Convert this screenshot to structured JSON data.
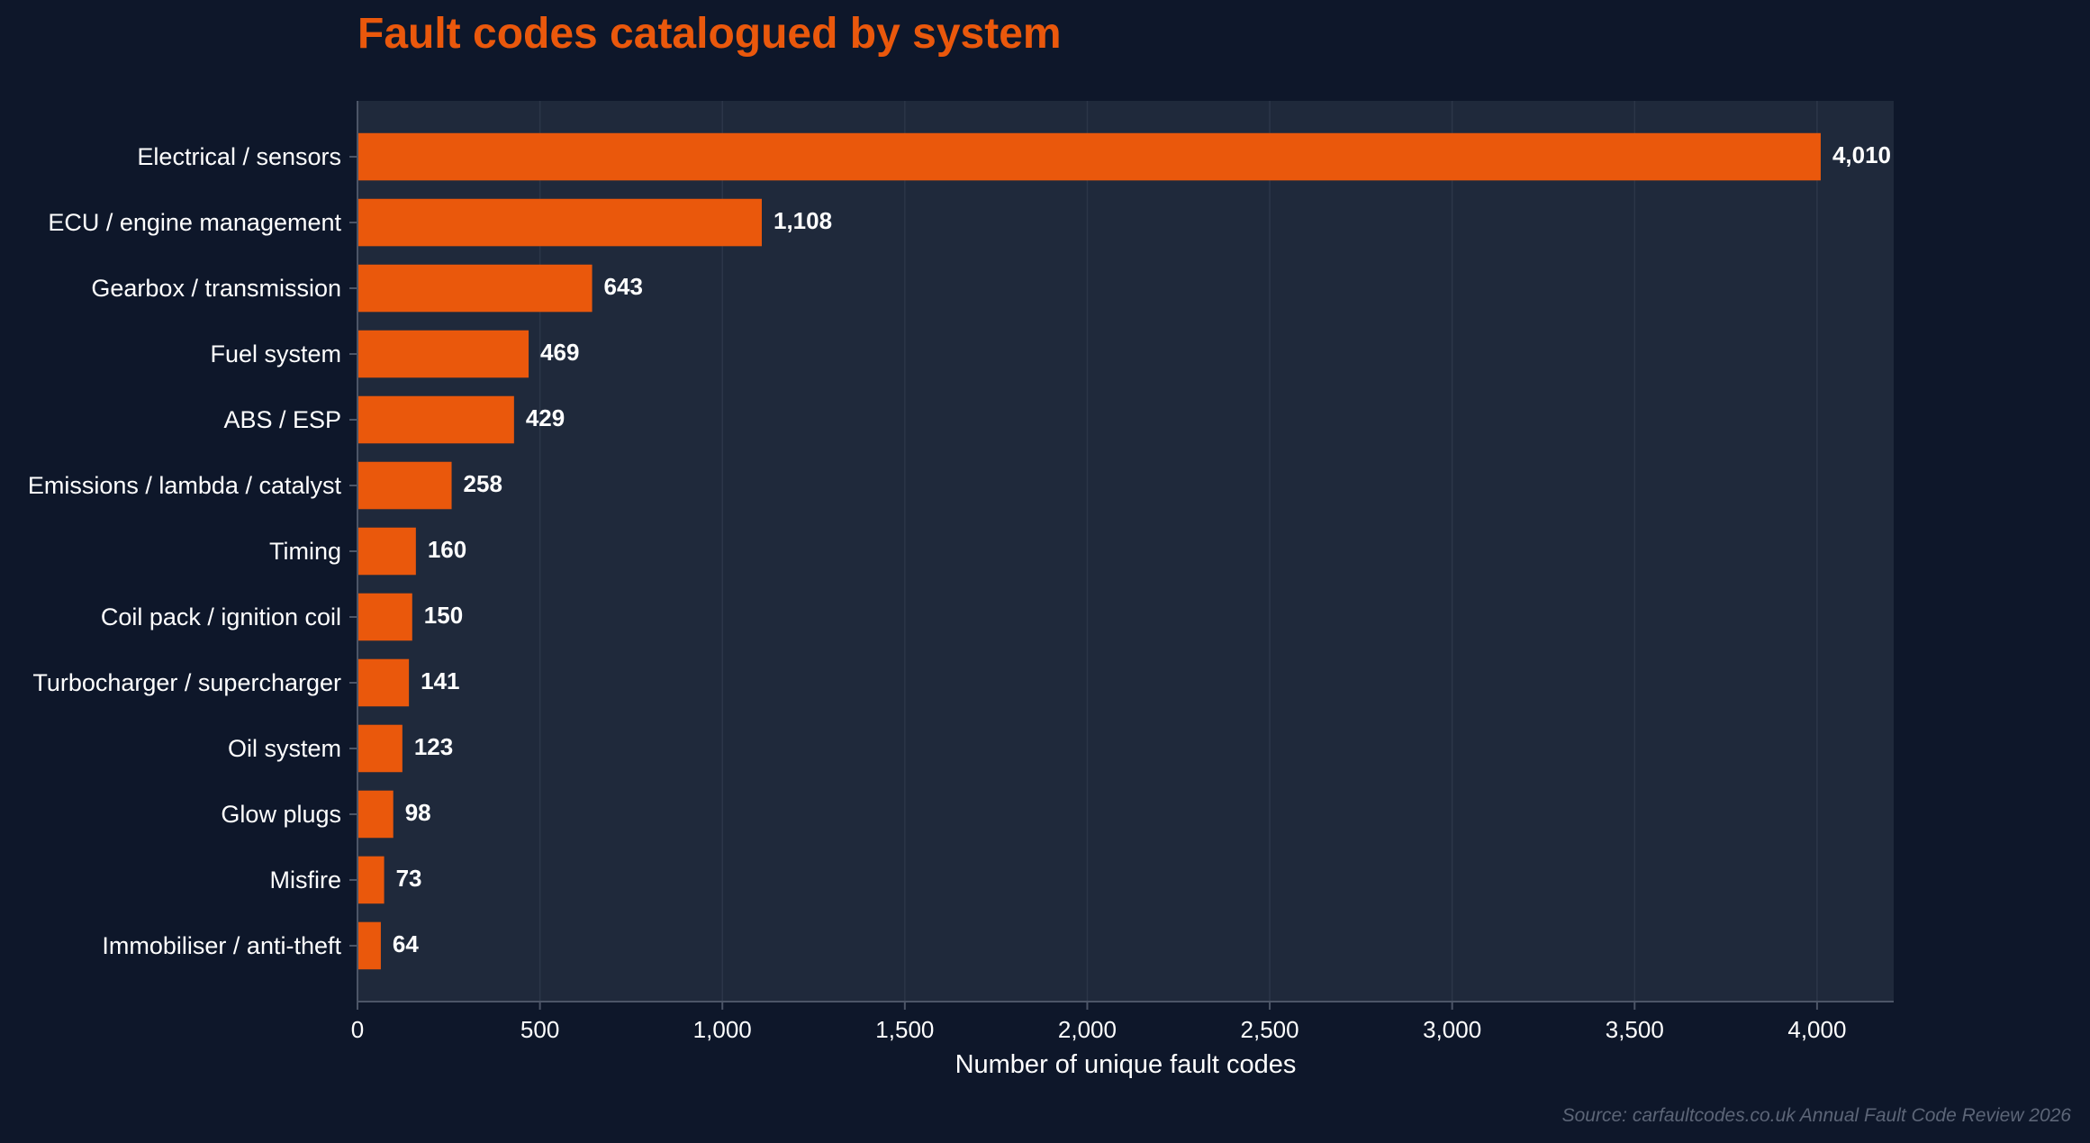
{
  "chart_data": {
    "type": "bar",
    "orientation": "horizontal",
    "title": "Fault codes catalogued by system",
    "xlabel": "Number of unique fault codes",
    "ylabel": "",
    "categories": [
      "Electrical / sensors",
      "ECU / engine management",
      "Gearbox / transmission",
      "Fuel system",
      "ABS / ESP",
      "Emissions / lambda / catalyst",
      "Timing",
      "Coil pack / ignition coil",
      "Turbocharger / supercharger",
      "Oil system",
      "Glow plugs",
      "Misfire",
      "Immobiliser / anti-theft"
    ],
    "values": [
      4010,
      1108,
      643,
      469,
      429,
      258,
      160,
      150,
      141,
      123,
      98,
      73,
      64
    ],
    "value_labels": [
      "4,010",
      "1,108",
      "643",
      "469",
      "429",
      "258",
      "160",
      "150",
      "141",
      "123",
      "98",
      "73",
      "64"
    ],
    "xlim": [
      0,
      4210
    ],
    "xticks": [
      0,
      500,
      1000,
      1500,
      2000,
      2500,
      3000,
      3500,
      4000
    ],
    "xtick_labels": [
      "0",
      "500",
      "1,000",
      "1,500",
      "2,000",
      "2,500",
      "3,000",
      "3,500",
      "4,000"
    ],
    "grid": "vertical",
    "legend": "none",
    "source": "Source: carfaultcodes.co.uk Annual Fault Code Review 2026"
  },
  "colors": {
    "page_background": "#0e172a",
    "plot_background": "#1f293b",
    "bar": "#ea580c",
    "title": "#ea580c",
    "text": "#ffffff",
    "grid": "#2c3648",
    "axis": "#4c5567",
    "source_text": "#5c6577"
  }
}
